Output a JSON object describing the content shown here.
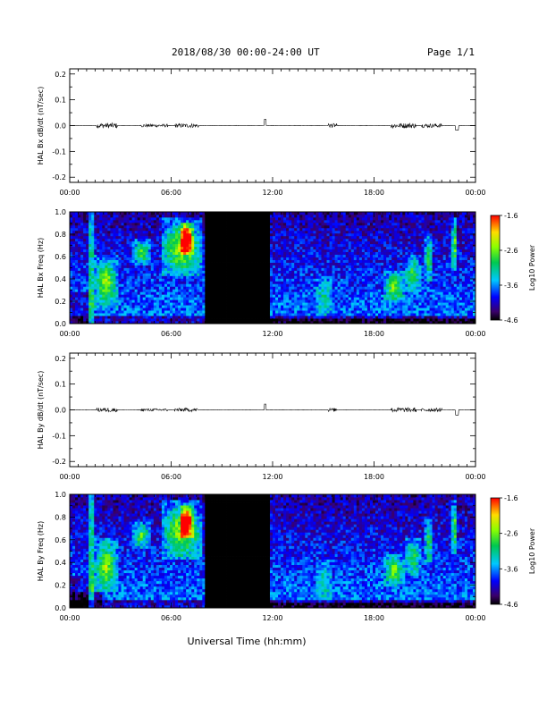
{
  "header": {
    "title": "2018/08/30  00:00-24:00 UT",
    "page": "Page 1/1"
  },
  "xlabel": "Universal Time (hh:mm)",
  "time_ticks": [
    "00:00",
    "06:00",
    "12:00",
    "18:00",
    "00:00"
  ],
  "chart_data": [
    {
      "type": "line",
      "ylabel": "HAL Bx dB/dt (nT/sec)",
      "xlim": [
        0,
        24
      ],
      "ylim": [
        -0.22,
        0.22
      ],
      "yticks": [
        "0.2",
        "0.1",
        "0.0",
        "-0.1",
        "-0.2"
      ],
      "bursts": [
        {
          "start": 1.6,
          "end": 2.8,
          "amp": 0.01
        },
        {
          "start": 4.2,
          "end": 5.8,
          "amp": 0.006
        },
        {
          "start": 6.2,
          "end": 7.6,
          "amp": 0.008
        },
        {
          "start": 11.5,
          "end": 11.6,
          "amp": 0.025
        },
        {
          "start": 15.3,
          "end": 15.8,
          "amp": 0.008
        },
        {
          "start": 19.0,
          "end": 20.5,
          "amp": 0.01
        },
        {
          "start": 20.8,
          "end": 22.0,
          "amp": 0.008
        },
        {
          "start": 22.8,
          "end": 23.0,
          "amp": -0.018
        }
      ]
    },
    {
      "type": "heatmap",
      "ylabel": "HAL Bx Freq (Hz)",
      "xlim": [
        0,
        24
      ],
      "ylim": [
        0,
        1.0
      ],
      "yticks": [
        "1.0",
        "0.8",
        "0.6",
        "0.4",
        "0.2",
        "0.0"
      ],
      "data_gap": [
        8.0,
        11.8
      ],
      "colorbar": {
        "label": "Log10 Power",
        "ticks": [
          "-1.6",
          "-2.6",
          "-3.6",
          "-4.6"
        ],
        "range": [
          -4.6,
          -1.6
        ]
      }
    },
    {
      "type": "line",
      "ylabel": "HAL By dB/dt (nT/sec)",
      "xlim": [
        0,
        24
      ],
      "ylim": [
        -0.22,
        0.22
      ],
      "yticks": [
        "0.2",
        "0.1",
        "0.0",
        "-0.1",
        "-0.2"
      ],
      "bursts": [
        {
          "start": 1.6,
          "end": 2.8,
          "amp": 0.008
        },
        {
          "start": 4.2,
          "end": 5.8,
          "amp": 0.005
        },
        {
          "start": 6.2,
          "end": 7.6,
          "amp": 0.007
        },
        {
          "start": 11.5,
          "end": 11.6,
          "amp": 0.022
        },
        {
          "start": 15.3,
          "end": 15.8,
          "amp": 0.007
        },
        {
          "start": 19.0,
          "end": 20.5,
          "amp": 0.009
        },
        {
          "start": 20.8,
          "end": 22.0,
          "amp": 0.007
        },
        {
          "start": 22.8,
          "end": 23.0,
          "amp": -0.02
        }
      ]
    },
    {
      "type": "heatmap",
      "ylabel": "HAL By Freq (Hz)",
      "xlim": [
        0,
        24
      ],
      "ylim": [
        0,
        1.0
      ],
      "yticks": [
        "1.0",
        "0.8",
        "0.6",
        "0.4",
        "0.2",
        "0.0"
      ],
      "data_gap": [
        8.0,
        11.8
      ],
      "colorbar": {
        "label": "Log10 Power",
        "ticks": [
          "-1.6",
          "-2.6",
          "-3.6",
          "-4.6"
        ],
        "range": [
          -4.6,
          -1.6
        ]
      }
    }
  ]
}
